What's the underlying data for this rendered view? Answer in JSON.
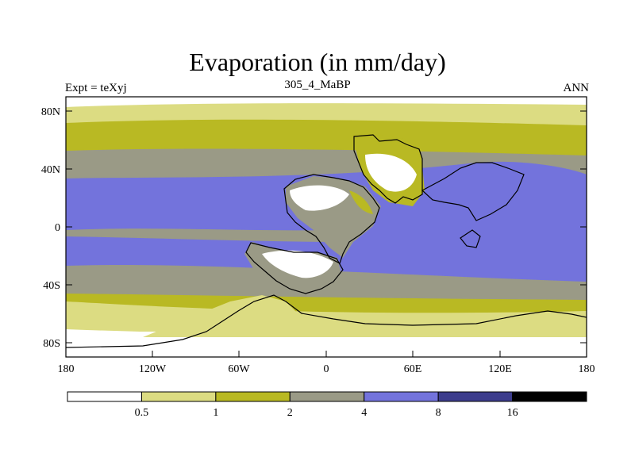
{
  "header": {
    "title": "Evaporation (in mm/day)",
    "left": "Expt = teXyj",
    "center": "305_4_MaBP",
    "right": "ANN"
  },
  "axes": {
    "y_ticks": [
      "80N",
      "40N",
      "0",
      "40S",
      "80S"
    ],
    "x_ticks": [
      "180",
      "120W",
      "60W",
      "0",
      "60E",
      "120E",
      "180"
    ]
  },
  "colorbar": {
    "labels": [
      "0.5",
      "1",
      "2",
      "4",
      "8",
      "16"
    ],
    "colors": [
      "#ffffff",
      "#dcdc82",
      "#b9b923",
      "#9a9a86",
      "#7373dc",
      "#3c3c8c",
      "#000000"
    ]
  },
  "chart_data": {
    "type": "heatmap",
    "title": "Evaporation (in mm/day)",
    "xlabel": "",
    "ylabel": "",
    "xlim": [
      -180,
      180
    ],
    "ylim": [
      -90,
      90
    ],
    "levels": [
      0.5,
      1,
      2,
      4,
      8,
      16
    ],
    "zonal_bands_mm_per_day": [
      {
        "lat_range": [
          70,
          90
        ],
        "value_range": "0.5-1"
      },
      {
        "lat_range": [
          50,
          70
        ],
        "value_range": "1-2"
      },
      {
        "lat_range": [
          35,
          50
        ],
        "value_range": "2-4"
      },
      {
        "lat_range": [
          -30,
          35
        ],
        "value_range": "4-8"
      },
      {
        "lat_range": [
          -45,
          -30
        ],
        "value_range": "2-4"
      },
      {
        "lat_range": [
          -60,
          -45
        ],
        "value_range": "1-2"
      },
      {
        "lat_range": [
          -75,
          -60
        ],
        "value_range": "0.5-1"
      },
      {
        "lat_range": [
          -90,
          -75
        ],
        "value_range": "0-0.5"
      }
    ]
  }
}
